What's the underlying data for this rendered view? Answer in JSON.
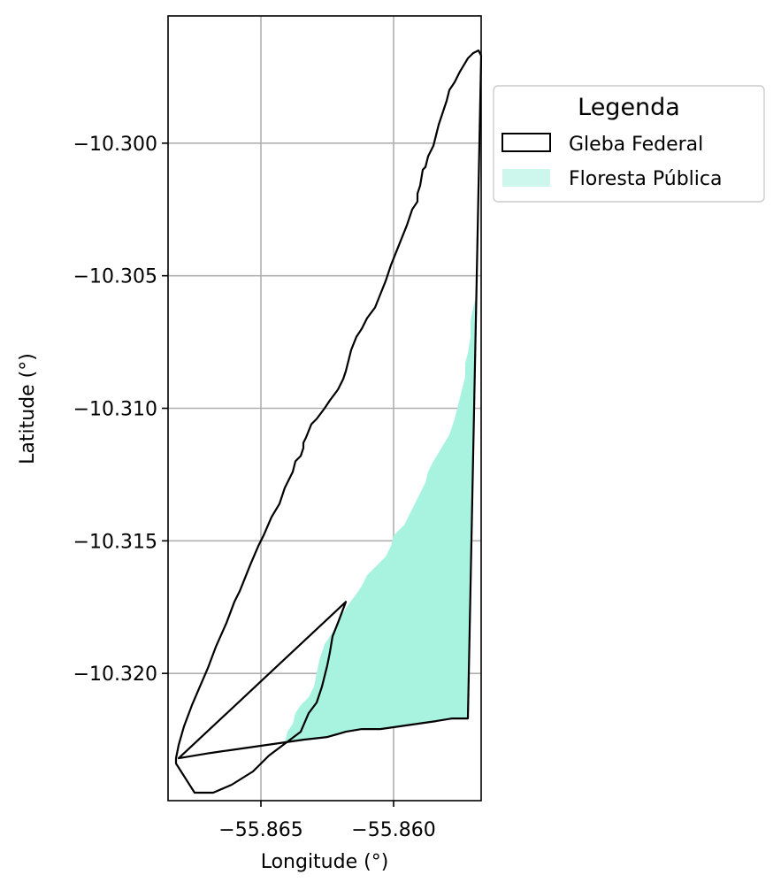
{
  "map": {
    "x_axis": {
      "label": "Longitude (°)",
      "ticks": [
        {
          "value": -55.865,
          "label": "−55.865"
        },
        {
          "value": -55.86,
          "label": "−55.860"
        }
      ],
      "range": [
        -55.8685,
        -55.8567
      ]
    },
    "y_axis": {
      "label": "Latitude (°)",
      "ticks": [
        {
          "value": -10.3,
          "label": "−10.300"
        },
        {
          "value": -10.305,
          "label": "−10.305"
        },
        {
          "value": -10.31,
          "label": "−10.310"
        },
        {
          "value": -10.315,
          "label": "−10.315"
        },
        {
          "value": -10.32,
          "label": "−10.320"
        }
      ],
      "range": [
        -10.3248,
        -10.2952
      ]
    },
    "grid": true,
    "legend": {
      "title": "Legenda",
      "placement": "outside-right-top",
      "entries": [
        {
          "key": "gleba",
          "label": "Gleba Federal",
          "style": "outline"
        },
        {
          "key": "floresta",
          "label": "Floresta Pública",
          "style": "fill"
        }
      ]
    },
    "colors": {
      "gleba_outline": "#000000",
      "floresta_fill": "#a8f3e0",
      "floresta_legend_fill": "#cdf7ec",
      "grid": "#b0b0b0"
    },
    "layers": {
      "gleba": [
        [
          -55.8618,
          -10.3173
        ],
        [
          -55.8621,
          -10.3181
        ],
        [
          -55.8623,
          -10.3186
        ],
        [
          -55.8624,
          -10.3192
        ],
        [
          -55.8625,
          -10.3197
        ],
        [
          -55.8627,
          -10.3205
        ],
        [
          -55.8629,
          -10.3211
        ],
        [
          -55.8632,
          -10.3215
        ],
        [
          -55.8635,
          -10.3222
        ],
        [
          -55.8643,
          -10.3228
        ],
        [
          -55.8647,
          -10.3231
        ],
        [
          -55.8653,
          -10.3237
        ],
        [
          -55.8661,
          -10.3242
        ],
        [
          -55.8668,
          -10.3245
        ],
        [
          -55.8675,
          -10.3245
        ],
        [
          -55.8682,
          -10.3234
        ],
        [
          -55.8682,
          -10.3232
        ],
        [
          -55.8681,
          -10.3227
        ],
        [
          -55.8679,
          -10.322
        ],
        [
          -55.8676,
          -10.3212
        ],
        [
          -55.8673,
          -10.3205
        ],
        [
          -55.867,
          -10.3198
        ],
        [
          -55.8667,
          -10.319
        ],
        [
          -55.8663,
          -10.3181
        ],
        [
          -55.866,
          -10.3173
        ],
        [
          -55.8658,
          -10.3169
        ],
        [
          -55.8656,
          -10.3164
        ],
        [
          -55.8654,
          -10.3159
        ],
        [
          -55.8651,
          -10.3152
        ],
        [
          -55.8649,
          -10.3148
        ],
        [
          -55.8646,
          -10.3141
        ],
        [
          -55.8643,
          -10.3136
        ],
        [
          -55.8641,
          -10.313
        ],
        [
          -55.8638,
          -10.3124
        ],
        [
          -55.8637,
          -10.312
        ],
        [
          -55.8635,
          -10.3118
        ],
        [
          -55.8634,
          -10.3115
        ],
        [
          -55.8634,
          -10.3113
        ],
        [
          -55.8633,
          -10.3111
        ],
        [
          -55.8631,
          -10.3106
        ],
        [
          -55.8629,
          -10.3104
        ],
        [
          -55.8626,
          -10.31
        ],
        [
          -55.8624,
          -10.3097
        ],
        [
          -55.8621,
          -10.3093
        ],
        [
          -55.8619,
          -10.3089
        ],
        [
          -55.8618,
          -10.3086
        ],
        [
          -55.8617,
          -10.3082
        ],
        [
          -55.8616,
          -10.3078
        ],
        [
          -55.8614,
          -10.3073
        ],
        [
          -55.8612,
          -10.307
        ],
        [
          -55.861,
          -10.3066
        ],
        [
          -55.8607,
          -10.3062
        ],
        [
          -55.8605,
          -10.3057
        ],
        [
          -55.8603,
          -10.3052
        ],
        [
          -55.8601,
          -10.3046
        ],
        [
          -55.8599,
          -10.3041
        ],
        [
          -55.8597,
          -10.3036
        ],
        [
          -55.8595,
          -10.3031
        ],
        [
          -55.8593,
          -10.3025
        ],
        [
          -55.8591,
          -10.3022
        ],
        [
          -55.8591,
          -10.3019
        ],
        [
          -55.859,
          -10.3016
        ],
        [
          -55.8589,
          -10.301
        ],
        [
          -55.8588,
          -10.3009
        ],
        [
          -55.8587,
          -10.3005
        ],
        [
          -55.8585,
          -10.3001
        ],
        [
          -55.8584,
          -10.2997
        ],
        [
          -55.8583,
          -10.2993
        ],
        [
          -55.8582,
          -10.299
        ],
        [
          -55.8581,
          -10.2987
        ],
        [
          -55.858,
          -10.2984
        ],
        [
          -55.8579,
          -10.298
        ],
        [
          -55.8577,
          -10.2977
        ],
        [
          -55.8575,
          -10.2973
        ],
        [
          -55.8572,
          -10.2968
        ],
        [
          -55.857,
          -10.2966
        ],
        [
          -55.8568,
          -10.2965
        ],
        [
          -55.8567,
          -10.2967
        ],
        [
          -55.8572,
          -10.3217
        ],
        [
          -55.8578,
          -10.3217
        ],
        [
          -55.8584,
          -10.3218
        ],
        [
          -55.8591,
          -10.3219
        ],
        [
          -55.8598,
          -10.322
        ],
        [
          -55.8605,
          -10.3221
        ],
        [
          -55.8612,
          -10.3221
        ],
        [
          -55.8618,
          -10.3222
        ],
        [
          -55.8625,
          -10.3224
        ],
        [
          -55.8634,
          -10.3225
        ],
        [
          -55.8641,
          -10.3226
        ],
        [
          -55.8648,
          -10.3227
        ],
        [
          -55.8655,
          -10.3228
        ],
        [
          -55.8662,
          -10.3229
        ],
        [
          -55.8669,
          -10.323
        ],
        [
          -55.8675,
          -10.3231
        ],
        [
          -55.8681,
          -10.3232
        ]
      ],
      "floresta": [
        [
          -55.8641,
          -10.3226
        ],
        [
          -55.864,
          -10.3222
        ],
        [
          -55.8638,
          -10.3219
        ],
        [
          -55.8637,
          -10.3215
        ],
        [
          -55.8635,
          -10.3212
        ],
        [
          -55.8632,
          -10.3209
        ],
        [
          -55.863,
          -10.3205
        ],
        [
          -55.8629,
          -10.32
        ],
        [
          -55.8628,
          -10.3195
        ],
        [
          -55.8627,
          -10.3192
        ],
        [
          -55.8626,
          -10.3189
        ],
        [
          -55.8624,
          -10.3186
        ],
        [
          -55.8622,
          -10.3183
        ],
        [
          -55.8621,
          -10.318
        ],
        [
          -55.8619,
          -10.3177
        ],
        [
          -55.8617,
          -10.3174
        ],
        [
          -55.8614,
          -10.317
        ],
        [
          -55.8612,
          -10.3167
        ],
        [
          -55.861,
          -10.3163
        ],
        [
          -55.8607,
          -10.316
        ],
        [
          -55.8603,
          -10.3156
        ],
        [
          -55.8601,
          -10.3152
        ],
        [
          -55.86,
          -10.3148
        ],
        [
          -55.8596,
          -10.3144
        ],
        [
          -55.8594,
          -10.314
        ],
        [
          -55.8592,
          -10.3136
        ],
        [
          -55.859,
          -10.3132
        ],
        [
          -55.8588,
          -10.3128
        ],
        [
          -55.8587,
          -10.3124
        ],
        [
          -55.8585,
          -10.312
        ],
        [
          -55.8582,
          -10.3115
        ],
        [
          -55.8579,
          -10.311
        ],
        [
          -55.8577,
          -10.3104
        ],
        [
          -55.8576,
          -10.31
        ],
        [
          -55.8575,
          -10.3096
        ],
        [
          -55.8574,
          -10.3092
        ],
        [
          -55.8573,
          -10.3088
        ],
        [
          -55.8573,
          -10.3083
        ],
        [
          -55.8572,
          -10.3079
        ],
        [
          -55.8571,
          -10.3073
        ],
        [
          -55.8571,
          -10.3067
        ],
        [
          -55.857,
          -10.3062
        ],
        [
          -55.8569,
          -10.3058
        ],
        [
          -55.8569,
          -10.3055
        ],
        [
          -55.8572,
          -10.3217
        ],
        [
          -55.8578,
          -10.3217
        ],
        [
          -55.8584,
          -10.3218
        ],
        [
          -55.8591,
          -10.3219
        ],
        [
          -55.8598,
          -10.322
        ],
        [
          -55.8605,
          -10.3221
        ],
        [
          -55.8612,
          -10.3221
        ],
        [
          -55.8618,
          -10.3222
        ],
        [
          -55.8625,
          -10.3224
        ],
        [
          -55.8634,
          -10.3225
        ],
        [
          -55.8641,
          -10.3226
        ]
      ]
    }
  }
}
